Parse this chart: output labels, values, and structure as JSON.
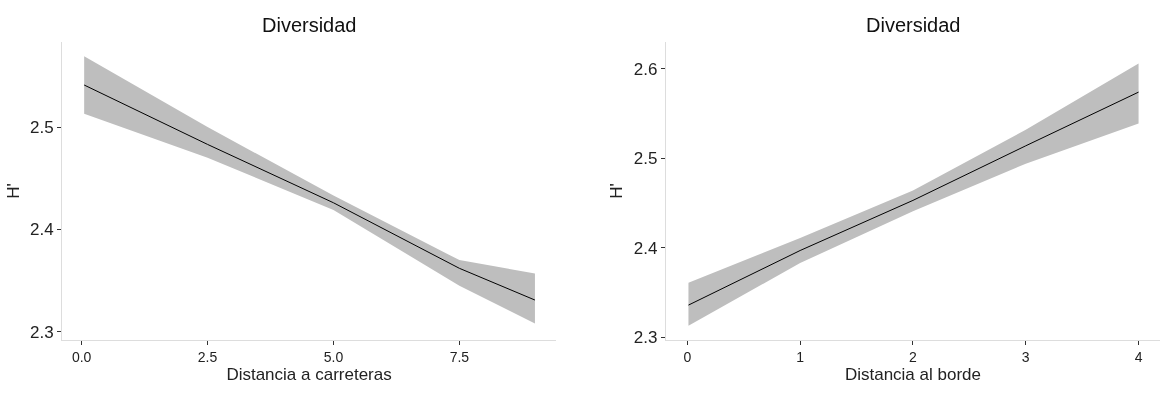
{
  "chart_data": [
    {
      "type": "line",
      "title": "Diversidad",
      "xlabel": "Distancia a carreteras",
      "ylabel": "H'",
      "xlim": [
        -0.39,
        9.42
      ],
      "xticks": [
        {
          "value": 0,
          "label": "0.0"
        },
        2.5,
        {
          "value": 5,
          "label": "5.0"
        },
        7.5
      ],
      "ylim": [
        2.292,
        2.583
      ],
      "yticks": [
        2.3,
        2.4,
        2.5
      ],
      "marker": "none",
      "line_style": "solid",
      "series": [
        {
          "color": "#000000",
          "x": [
            0.05,
            2.5,
            5,
            7.5,
            9
          ],
          "values": [
            2.541,
            2.483,
            2.426,
            2.362,
            2.331
          ],
          "lower": [
            2.513,
            2.47,
            2.419,
            2.345,
            2.308
          ],
          "upper": [
            2.569,
            2.5,
            2.433,
            2.37,
            2.357
          ]
        }
      ]
    },
    {
      "type": "line",
      "title": "Diversidad",
      "xlabel": "Distancia al borde",
      "ylabel": "H'",
      "xlim": [
        -0.19,
        4.19
      ],
      "xticks": [
        0,
        1,
        2,
        3,
        4
      ],
      "ylim": [
        2.297,
        2.63
      ],
      "yticks": [
        2.3,
        2.4,
        2.5,
        2.6
      ],
      "marker": "none",
      "line_style": "solid",
      "series": [
        {
          "color": "#000000",
          "x": [
            0.01,
            1,
            2,
            3,
            4
          ],
          "values": [
            2.336,
            2.397,
            2.453,
            2.514,
            2.574
          ],
          "lower": [
            2.313,
            2.383,
            2.441,
            2.494,
            2.539
          ],
          "upper": [
            2.361,
            2.411,
            2.464,
            2.532,
            2.606
          ]
        }
      ]
    }
  ]
}
